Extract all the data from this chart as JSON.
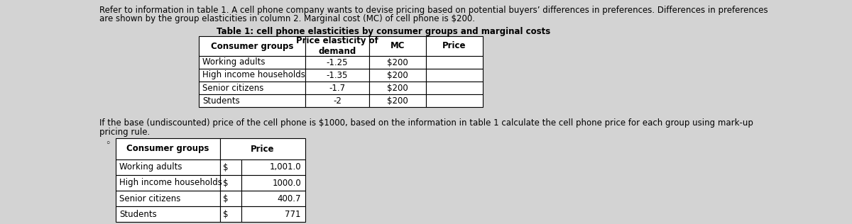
{
  "intro_line1": "Refer to information in table 1. A cell phone company wants to devise pricing based on potential buyers’ differences in preferences. Differences in preferences",
  "intro_line2": "are shown by the group elasticities in column 2. Marginal cost (MC) of cell phone is $200.",
  "table1_title": "Table 1: cell phone elasticities by consumer groups and marginal costs",
  "table1_headers": [
    "Consumer groups",
    "Price elasticity of\ndemand",
    "MC",
    "Price"
  ],
  "table1_rows": [
    [
      "Working adults",
      "-1.25",
      "$200",
      ""
    ],
    [
      "High income households",
      "-1.35",
      "$200",
      ""
    ],
    [
      "Senior citizens",
      "-1.7",
      "$200",
      ""
    ],
    [
      "Students",
      "-2",
      "$200",
      ""
    ]
  ],
  "question_line1": "If the base (undiscounted) price of the cell phone is $1000, based on the information in table 1 calculate the cell phone price for each group using mark-up",
  "question_line2": "pricing rule.",
  "table2_headers": [
    "Consumer groups",
    "Price"
  ],
  "table2_rows": [
    [
      "Working adults",
      "$",
      "1,001.0"
    ],
    [
      "High income households",
      "$",
      "1000.0"
    ],
    [
      "Senior citizens",
      "$",
      "400.7"
    ],
    [
      "Students",
      "$",
      "771"
    ]
  ],
  "bg_color": "#d3d3d3",
  "font_size": 8.5,
  "font_size_title": 8.5
}
